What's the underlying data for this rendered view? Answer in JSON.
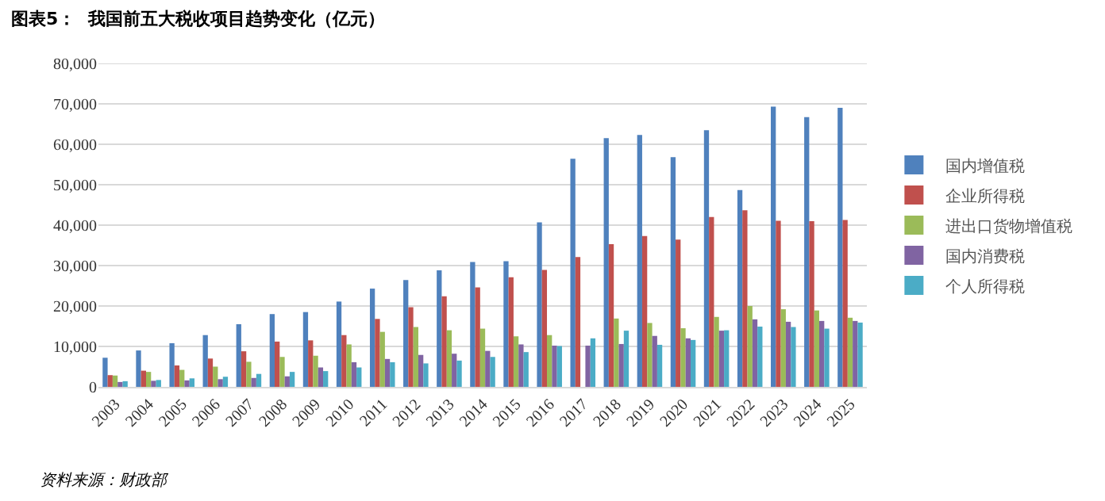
{
  "chart_data": {
    "type": "bar",
    "title": "图表5：  我国前五大税收项目趋势变化（亿元）",
    "categories": [
      "2003",
      "2004",
      "2005",
      "2006",
      "2007",
      "2008",
      "2009",
      "2010",
      "2011",
      "2012",
      "2013",
      "2014",
      "2015",
      "2016",
      "2017",
      "2018",
      "2019",
      "2020",
      "2021",
      "2022",
      "2023",
      "2024",
      "2025"
    ],
    "series": [
      {
        "name": "国内增值税",
        "color": "#4f81bd",
        "values": [
          7200,
          9000,
          10800,
          12800,
          15500,
          18000,
          18500,
          21100,
          24300,
          26400,
          28800,
          30900,
          31100,
          40700,
          56400,
          61500,
          62300,
          56800,
          63500,
          48700,
          69300,
          66700,
          69000
        ]
      },
      {
        "name": "企业所得税",
        "color": "#c0504d",
        "values": [
          2900,
          4000,
          5300,
          7000,
          8800,
          11200,
          11500,
          12800,
          16800,
          19700,
          22400,
          24600,
          27100,
          28900,
          32100,
          35300,
          37300,
          36400,
          42000,
          43700,
          41100,
          41000,
          41300
        ]
      },
      {
        "name": "进出口货物增值税",
        "color": "#9bbb59",
        "values": [
          2800,
          3700,
          4200,
          5000,
          6200,
          7400,
          7700,
          10500,
          13600,
          14800,
          14000,
          14400,
          12500,
          12800,
          null,
          16900,
          15800,
          14500,
          17300,
          20000,
          19200,
          18900,
          17100
        ]
      },
      {
        "name": "国内消费税",
        "color": "#8064a2",
        "values": [
          1200,
          1500,
          1600,
          1900,
          2200,
          2600,
          4800,
          6100,
          6900,
          7900,
          8200,
          8900,
          10500,
          10200,
          10200,
          10600,
          12600,
          12000,
          13900,
          16700,
          16100,
          16300,
          16300
        ]
      },
      {
        "name": "个人所得税",
        "color": "#4bacc6",
        "values": [
          1400,
          1700,
          2100,
          2500,
          3200,
          3700,
          3900,
          4800,
          6100,
          5800,
          6500,
          7400,
          8600,
          10100,
          12000,
          13900,
          10400,
          11600,
          14000,
          14900,
          14800,
          14400,
          15900
        ]
      }
    ],
    "ylim": [
      0,
      80000
    ],
    "yticks": [
      {
        "value": 0,
        "label": "0"
      },
      {
        "value": 10000,
        "label": "10,000"
      },
      {
        "value": 20000,
        "label": "20,000"
      },
      {
        "value": 30000,
        "label": "30,000"
      },
      {
        "value": 40000,
        "label": "40,000"
      },
      {
        "value": 50000,
        "label": "50,000"
      },
      {
        "value": 60000,
        "label": "60,000"
      },
      {
        "value": 70000,
        "label": "70,000"
      },
      {
        "value": 80000,
        "label": "80,000"
      }
    ],
    "grid": "y",
    "legend": "right",
    "annotations": [
      "资料来源：财政部"
    ]
  }
}
